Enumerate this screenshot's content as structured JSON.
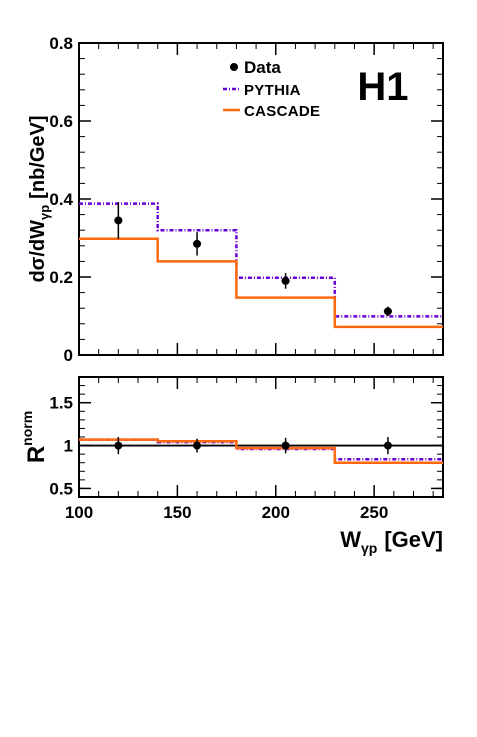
{
  "experiment_label": "H1",
  "colors": {
    "data": "#000000",
    "pythia": "#6a00d8",
    "cascade": "#ff6a10",
    "frame": "#000000"
  },
  "chart_data": [
    {
      "type": "line",
      "ylabel": {
        "main": "dσ/dW",
        "sub": "γp",
        "unit": "[nb/GeV]"
      },
      "xlim": [
        100,
        285
      ],
      "ylim": [
        0,
        0.8
      ],
      "yticks": [
        {
          "value": 0,
          "label": "0"
        },
        {
          "value": 0.2,
          "label": "0.2"
        },
        {
          "value": 0.4,
          "label": "0.4"
        },
        {
          "value": 0.6,
          "label": "0.6"
        },
        {
          "value": 0.8,
          "label": "0.8"
        }
      ],
      "bin_edges": [
        100,
        140,
        180,
        230,
        285
      ],
      "legend": {
        "placement": "top-center",
        "items": [
          {
            "key": "data",
            "label": "Data",
            "style": "marker"
          },
          {
            "key": "pythia",
            "label": "PYTHIA",
            "style": "dashdot"
          },
          {
            "key": "cascade",
            "label": "CASCADE",
            "style": "solid"
          }
        ]
      },
      "series": [
        {
          "key": "data",
          "name": "Data",
          "x": [
            120,
            160,
            205,
            257
          ],
          "y": [
            0.345,
            0.285,
            0.19,
            0.112
          ],
          "err": [
            0.047,
            0.03,
            0.02,
            0.012
          ]
        },
        {
          "key": "pythia",
          "name": "PYTHIA",
          "values": [
            0.388,
            0.32,
            0.198,
            0.099
          ]
        },
        {
          "key": "cascade",
          "name": "CASCADE",
          "values": [
            0.298,
            0.24,
            0.147,
            0.072
          ]
        }
      ]
    },
    {
      "type": "line",
      "ylabel": {
        "main": "R",
        "sup": "norm"
      },
      "xlabel": {
        "main": "W",
        "sub": "γp",
        "unit": "[GeV]"
      },
      "xlim": [
        100,
        285
      ],
      "ylim": [
        0.4,
        1.8
      ],
      "yticks": [
        {
          "value": 0.5,
          "label": "0.5"
        },
        {
          "value": 1.0,
          "label": "1"
        },
        {
          "value": 1.5,
          "label": "1.5"
        }
      ],
      "xticks": [
        {
          "value": 100,
          "label": "100"
        },
        {
          "value": 150,
          "label": "150"
        },
        {
          "value": 200,
          "label": "200"
        },
        {
          "value": 250,
          "label": "250"
        }
      ],
      "reference_line": 1.0,
      "bin_edges": [
        100,
        140,
        180,
        230,
        285
      ],
      "series": [
        {
          "key": "data",
          "name": "Data",
          "x": [
            120,
            160,
            205,
            257
          ],
          "y": [
            1.0,
            1.0,
            1.0,
            1.0
          ],
          "err": [
            0.1,
            0.08,
            0.09,
            0.1
          ]
        },
        {
          "key": "pythia",
          "name": "PYTHIA",
          "values": [
            1.07,
            1.04,
            0.96,
            0.84
          ]
        },
        {
          "key": "cascade",
          "name": "CASCADE",
          "values": [
            1.07,
            1.05,
            0.97,
            0.8
          ]
        }
      ]
    }
  ]
}
